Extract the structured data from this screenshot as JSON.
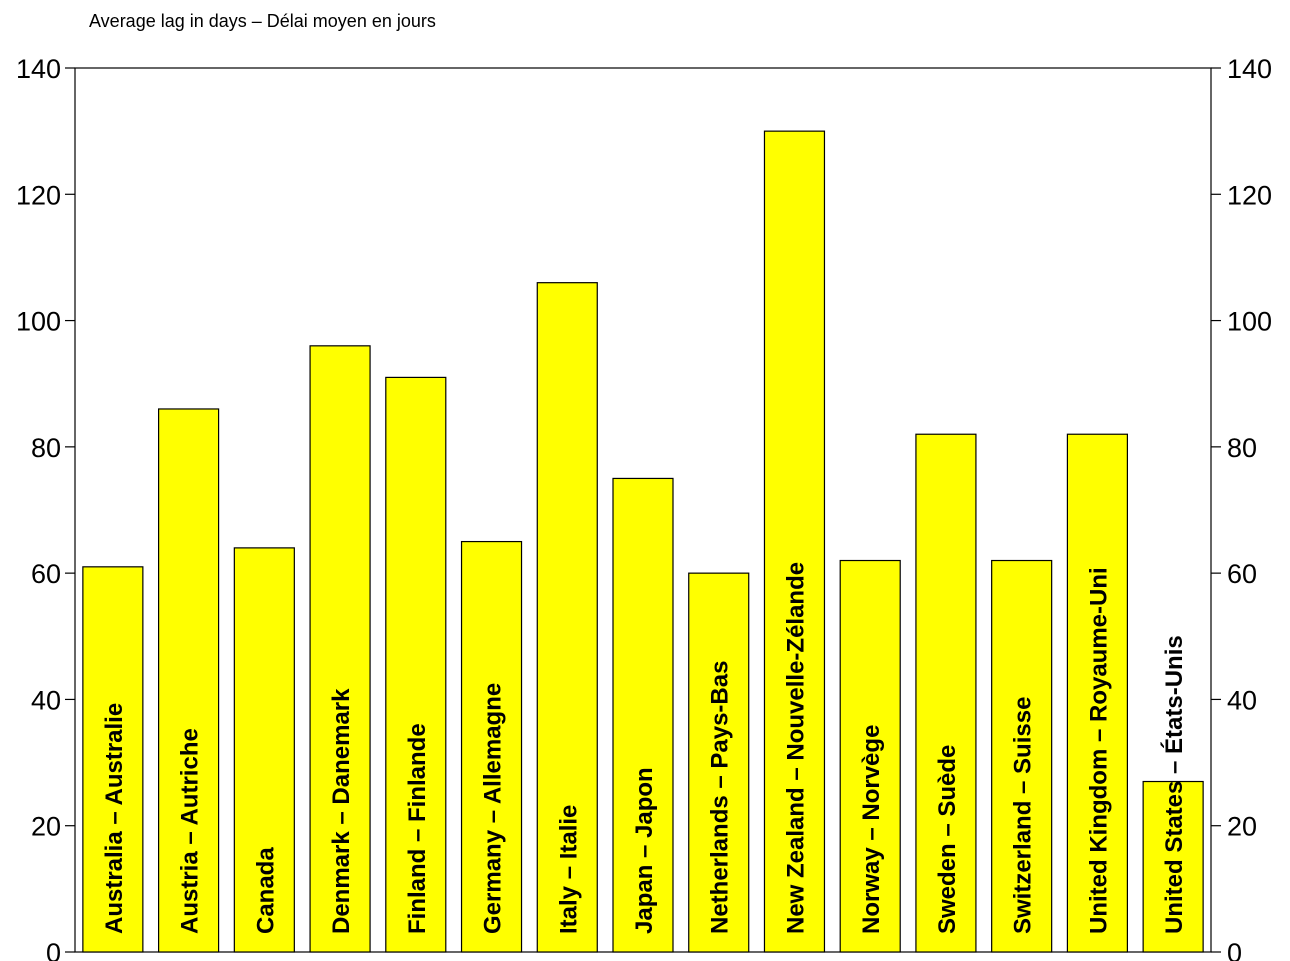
{
  "chart_data": {
    "type": "bar",
    "unit_label": "Average lag in days – Délai moyen en jours",
    "categories": [
      "Australia – Australie",
      "Austria – Autriche",
      "Canada",
      "Denmark – Danemark",
      "Finland – Finlande",
      "Germany – Allemagne",
      "Italy – Italie",
      "Japan – Japon",
      "Netherlands – Pays-Bas",
      "New Zealand – Nouvelle-Zélande",
      "Norway – Norvège",
      "Sweden – Suède",
      "Switzerland – Suisse",
      "United Kingdom – Royaume-Uni",
      "United States – États-Unis"
    ],
    "values": [
      61,
      86,
      64,
      96,
      91,
      65,
      106,
      75,
      60,
      130,
      62,
      82,
      62,
      82,
      27
    ],
    "ylim": [
      0,
      140
    ],
    "yticks": [
      0,
      20,
      40,
      60,
      80,
      100,
      120,
      140
    ],
    "right_axis": true,
    "grid": false,
    "legend": "none",
    "bar_color": "#ffff00",
    "labels_inside_bars": true
  }
}
